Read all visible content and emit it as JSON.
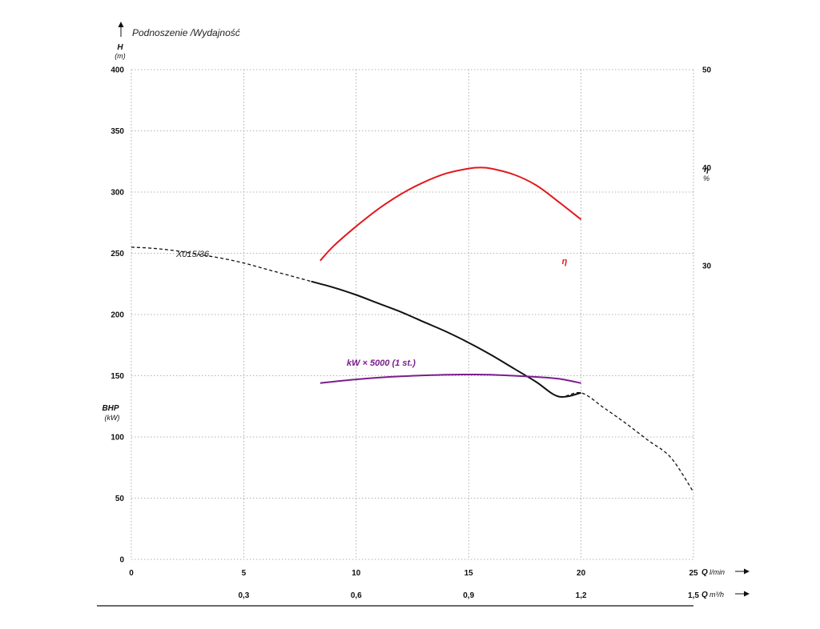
{
  "chart_data": {
    "type": "line",
    "title": "Podnoszenie /Wydajność",
    "y_left": {
      "label": "H",
      "unit": "(m)",
      "ticks": [
        0,
        50,
        100,
        150,
        200,
        250,
        300,
        350,
        400
      ],
      "range": [
        0,
        400
      ],
      "secondary_label": "BHP",
      "secondary_unit": "(kW)"
    },
    "y_right": {
      "label": "η",
      "unit": "%",
      "ticks": [
        30,
        40,
        50
      ],
      "range": [
        0,
        50
      ]
    },
    "x_primary": {
      "label": "Q",
      "unit": "l/min",
      "ticks": [
        "0",
        "5",
        "10",
        "15",
        "20",
        "25"
      ],
      "range": [
        0,
        25
      ]
    },
    "x_secondary": {
      "label": "Q",
      "unit": "m³/h",
      "ticks": [
        "0,3",
        "0,6",
        "0,9",
        "1,2",
        "1,5"
      ]
    },
    "grid": true,
    "series": [
      {
        "name": "X015/36",
        "axis": "left",
        "color": "#111111",
        "solid_range": [
          7.2,
          20.5
        ],
        "x": [
          0,
          1,
          2,
          3,
          4,
          5,
          6,
          7,
          8,
          9,
          10,
          11,
          12,
          13,
          14,
          15,
          16,
          17,
          18,
          19,
          20,
          21,
          22,
          23,
          24,
          25
        ],
        "y": [
          255,
          254,
          252,
          249,
          246,
          242,
          237,
          232,
          227,
          222,
          216,
          209,
          202,
          194,
          186,
          177,
          167,
          156,
          145,
          133,
          136,
          124,
          111,
          97,
          83,
          55
        ]
      },
      {
        "name": "η",
        "axis": "right",
        "color": "#e2191d",
        "x": [
          8.4,
          9,
          10,
          11,
          12,
          13,
          14,
          15,
          15.5,
          16,
          17,
          18,
          19,
          20
        ],
        "y": [
          30.5,
          32,
          34,
          35.8,
          37.3,
          38.5,
          39.4,
          39.9,
          40.0,
          39.9,
          39.3,
          38.2,
          36.5,
          34.7
        ]
      },
      {
        "name": "kW × 5000 (1 st.)",
        "axis": "left",
        "color": "#7b1e8e",
        "x": [
          8.4,
          10,
          12,
          14,
          15,
          16,
          18,
          19,
          20
        ],
        "y": [
          144,
          147,
          149.5,
          150.8,
          151,
          150.8,
          149,
          147.5,
          144
        ]
      }
    ]
  }
}
